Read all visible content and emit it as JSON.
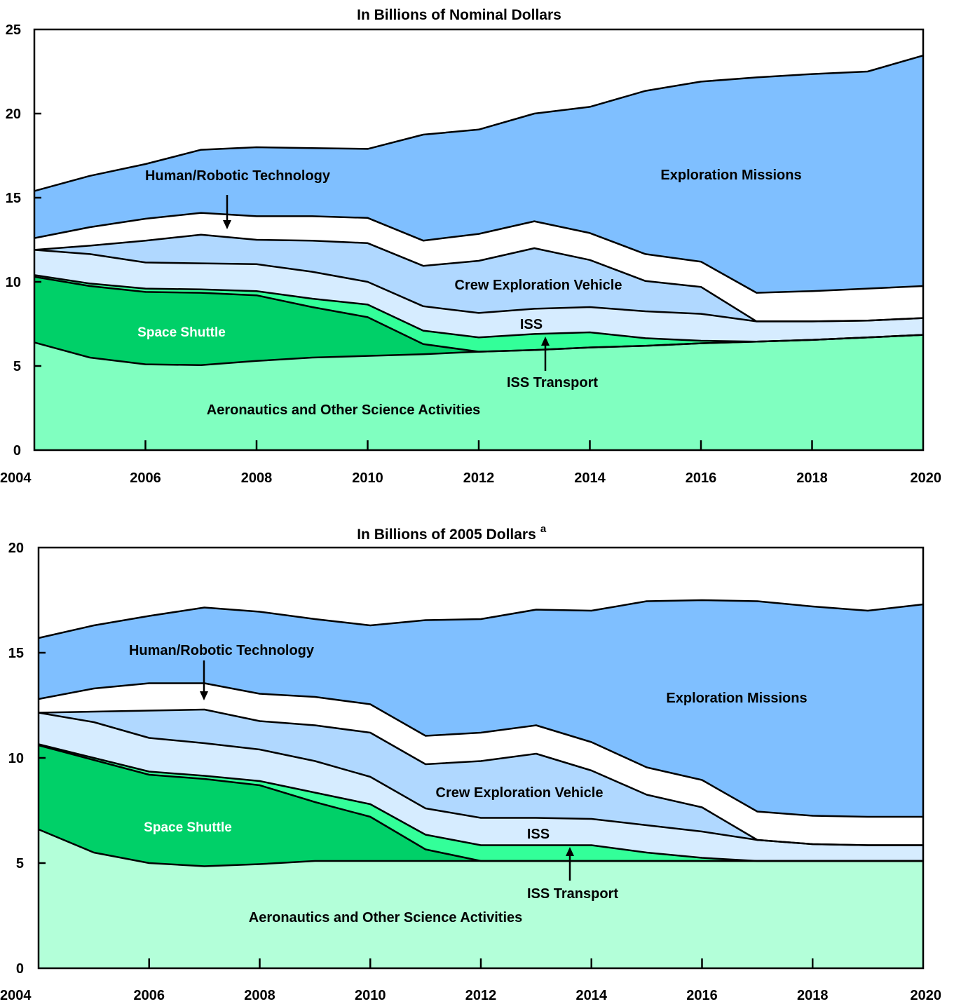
{
  "chart_data": [
    {
      "type": "area",
      "stacked": true,
      "title": "In Billions of Nominal Dollars",
      "superscript": "",
      "x": [
        2004,
        2005,
        2006,
        2007,
        2008,
        2009,
        2010,
        2011,
        2012,
        2013,
        2014,
        2015,
        2016,
        2017,
        2018,
        2019,
        2020
      ],
      "x_ticks": [
        "2004",
        "2006",
        "2008",
        "2010",
        "2012",
        "2014",
        "2016",
        "2018",
        "2020"
      ],
      "ylim": [
        0,
        25
      ],
      "y_ticks": [
        "0",
        "5",
        "10",
        "15",
        "20",
        "25"
      ],
      "grid": false,
      "colors": {
        "Aeronautics and Other Science Activities": "#80ffc0",
        "Space Shuttle": "#00d068",
        "ISS Transport": "#33ff99",
        "ISS": "#d6ecff",
        "Crew Exploration Vehicle": "#b0d8ff",
        "Human/Robotic Technology": "#ffffff",
        "Exploration Missions": "#7fbfff"
      },
      "series": [
        {
          "name": "Aeronautics and Other Science Activities",
          "values": [
            6.4,
            5.5,
            5.1,
            5.05,
            5.3,
            5.5,
            5.6,
            5.7,
            5.85,
            5.95,
            6.1,
            6.2,
            6.35,
            6.45,
            6.55,
            6.7,
            6.85
          ]
        },
        {
          "name": "Space Shuttle",
          "values": [
            3.9,
            4.25,
            4.3,
            4.3,
            3.9,
            3.0,
            2.3,
            0.6,
            0.0,
            0.0,
            0.0,
            0.0,
            0.0,
            0.0,
            0.0,
            0.0,
            0.0
          ]
        },
        {
          "name": "ISS Transport",
          "values": [
            0.1,
            0.15,
            0.2,
            0.2,
            0.25,
            0.5,
            0.75,
            0.8,
            0.85,
            0.95,
            0.9,
            0.45,
            0.15,
            0.0,
            0.0,
            0.0,
            0.0
          ]
        },
        {
          "name": "ISS",
          "values": [
            1.5,
            1.75,
            1.55,
            1.55,
            1.6,
            1.6,
            1.35,
            1.45,
            1.45,
            1.5,
            1.5,
            1.6,
            1.6,
            1.2,
            1.1,
            1.0,
            1.0
          ]
        },
        {
          "name": "Crew Exploration Vehicle",
          "values": [
            0.0,
            0.5,
            1.3,
            1.7,
            1.45,
            1.85,
            2.3,
            2.4,
            3.1,
            3.6,
            2.8,
            1.8,
            1.6,
            0.0,
            0.0,
            0.0,
            0.0
          ]
        },
        {
          "name": "Human/Robotic Technology",
          "values": [
            0.7,
            1.1,
            1.3,
            1.3,
            1.4,
            1.45,
            1.5,
            1.5,
            1.6,
            1.6,
            1.6,
            1.6,
            1.5,
            1.7,
            1.8,
            1.9,
            1.9
          ]
        },
        {
          "name": "Exploration Missions",
          "values": [
            2.8,
            3.05,
            3.25,
            3.75,
            4.1,
            4.05,
            4.1,
            6.3,
            6.2,
            6.4,
            7.5,
            9.7,
            10.7,
            12.8,
            12.9,
            12.9,
            13.7
          ]
        }
      ],
      "annotations": {
        "human_robotic": "Human/Robotic Technology",
        "exploration": "Exploration Missions",
        "cev": "Crew Exploration Vehicle",
        "iss": "ISS",
        "shuttle": "Space Shuttle",
        "iss_transport": "ISS Transport",
        "aero": "Aeronautics and Other Science Activities"
      }
    },
    {
      "type": "area",
      "stacked": true,
      "title": "In Billions of 2005 Dollars",
      "superscript": "a",
      "x": [
        2004,
        2005,
        2006,
        2007,
        2008,
        2009,
        2010,
        2011,
        2012,
        2013,
        2014,
        2015,
        2016,
        2017,
        2018,
        2019,
        2020
      ],
      "x_ticks": [
        "2004",
        "2006",
        "2008",
        "2010",
        "2012",
        "2014",
        "2016",
        "2018",
        "2020"
      ],
      "ylim": [
        0,
        20
      ],
      "y_ticks": [
        "0",
        "5",
        "10",
        "15",
        "20"
      ],
      "grid": false,
      "colors": {
        "Aeronautics and Other Science Activities": "#b3ffd9",
        "Space Shuttle": "#00d068",
        "ISS Transport": "#33ff99",
        "ISS": "#d6ecff",
        "Crew Exploration Vehicle": "#b0d8ff",
        "Human/Robotic Technology": "#ffffff",
        "Exploration Missions": "#7fbfff"
      },
      "series": [
        {
          "name": "Aeronautics and Other Science Activities",
          "values": [
            6.6,
            5.5,
            5.0,
            4.85,
            4.95,
            5.1,
            5.1,
            5.1,
            5.1,
            5.1,
            5.1,
            5.1,
            5.1,
            5.1,
            5.1,
            5.1,
            5.1
          ]
        },
        {
          "name": "Space Shuttle",
          "values": [
            4.0,
            4.4,
            4.2,
            4.15,
            3.75,
            2.8,
            2.1,
            0.55,
            0.0,
            0.0,
            0.0,
            0.0,
            0.0,
            0.0,
            0.0,
            0.0,
            0.0
          ]
        },
        {
          "name": "ISS Transport",
          "values": [
            0.05,
            0.1,
            0.15,
            0.15,
            0.2,
            0.45,
            0.6,
            0.7,
            0.75,
            0.75,
            0.75,
            0.4,
            0.15,
            0.0,
            0.0,
            0.0,
            0.0
          ]
        },
        {
          "name": "ISS",
          "values": [
            1.5,
            1.7,
            1.6,
            1.55,
            1.5,
            1.5,
            1.3,
            1.25,
            1.3,
            1.3,
            1.25,
            1.3,
            1.25,
            1.0,
            0.8,
            0.75,
            0.75
          ]
        },
        {
          "name": "Crew Exploration Vehicle",
          "values": [
            0.0,
            0.5,
            1.3,
            1.6,
            1.35,
            1.7,
            2.1,
            2.1,
            2.7,
            3.05,
            2.3,
            1.45,
            1.15,
            0.0,
            0.0,
            0.0,
            0.0
          ]
        },
        {
          "name": "Human/Robotic Technology",
          "values": [
            0.65,
            1.1,
            1.3,
            1.25,
            1.3,
            1.35,
            1.35,
            1.35,
            1.35,
            1.35,
            1.35,
            1.3,
            1.3,
            1.35,
            1.35,
            1.35,
            1.35
          ]
        },
        {
          "name": "Exploration Missions",
          "values": [
            2.9,
            3.0,
            3.2,
            3.6,
            3.9,
            3.7,
            3.75,
            5.5,
            5.4,
            5.5,
            6.25,
            7.9,
            8.55,
            10.0,
            9.95,
            9.8,
            10.1
          ]
        }
      ],
      "annotations": {
        "human_robotic": "Human/Robotic Technology",
        "exploration": "Exploration Missions",
        "cev": "Crew Exploration Vehicle",
        "iss": "ISS",
        "shuttle": "Space Shuttle",
        "iss_transport": "ISS Transport",
        "aero": "Aeronautics and Other Science Activities"
      }
    }
  ]
}
